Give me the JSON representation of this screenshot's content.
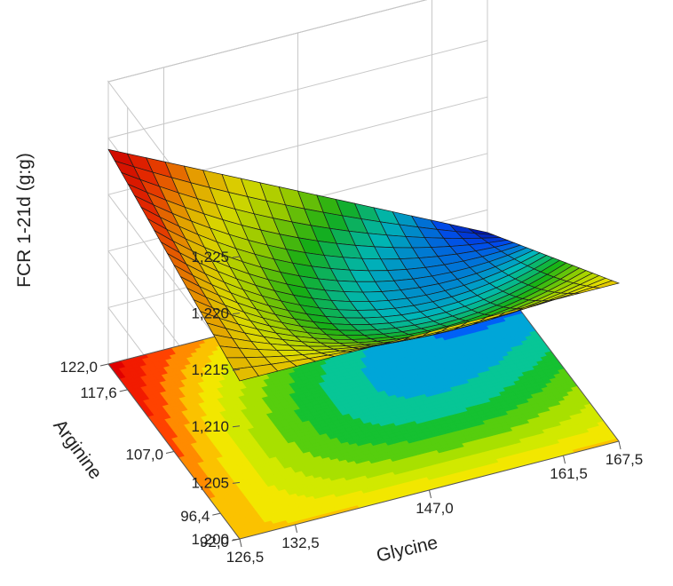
{
  "chart_data": {
    "type": "surface",
    "zlabel": "FCR 1-21d (g:g)",
    "xlabel": "Glycine",
    "ylabel": "Arginine",
    "x_ticks": [
      "126,5",
      "132,5",
      "147,0",
      "161,5",
      "167,5"
    ],
    "y_ticks": [
      "92,0",
      "96,4",
      "107,0",
      "117,6",
      "122,0"
    ],
    "z_ticks": [
      "1,200",
      "1,205",
      "1,210",
      "1,215",
      "1,220",
      "1,225"
    ],
    "xlim": [
      126.5,
      167.5
    ],
    "ylim": [
      92.0,
      122.0
    ],
    "zlim": [
      1.2,
      1.225
    ],
    "x_tick_values": [
      126.5,
      132.5,
      147.0,
      161.5,
      167.5
    ],
    "y_tick_values": [
      92.0,
      96.4,
      107.0,
      117.6,
      122.0
    ],
    "z_tick_values": [
      1.2,
      1.205,
      1.21,
      1.215,
      1.22,
      1.225
    ],
    "surface_model": {
      "description_of_shape": "saddle",
      "corner_values": {
        "glycine_126.5_arginine_122.0": 1.219,
        "glycine_126.5_arginine_92.0": 1.214,
        "glycine_167.5_arginine_92.0": 1.214,
        "glycine_167.5_arginine_122.0": 1.203
      },
      "center_value": 1.2075
    },
    "colormap": [
      "#0000a0",
      "#0050ff",
      "#00c8c8",
      "#18c018",
      "#a8e000",
      "#f0f000",
      "#ffb000",
      "#ff3000",
      "#e00000"
    ],
    "grid": true,
    "wall_grid_color": "#c8c8c8",
    "surface_grid_color": "#1a1a1a",
    "contour_on_floor": true
  }
}
